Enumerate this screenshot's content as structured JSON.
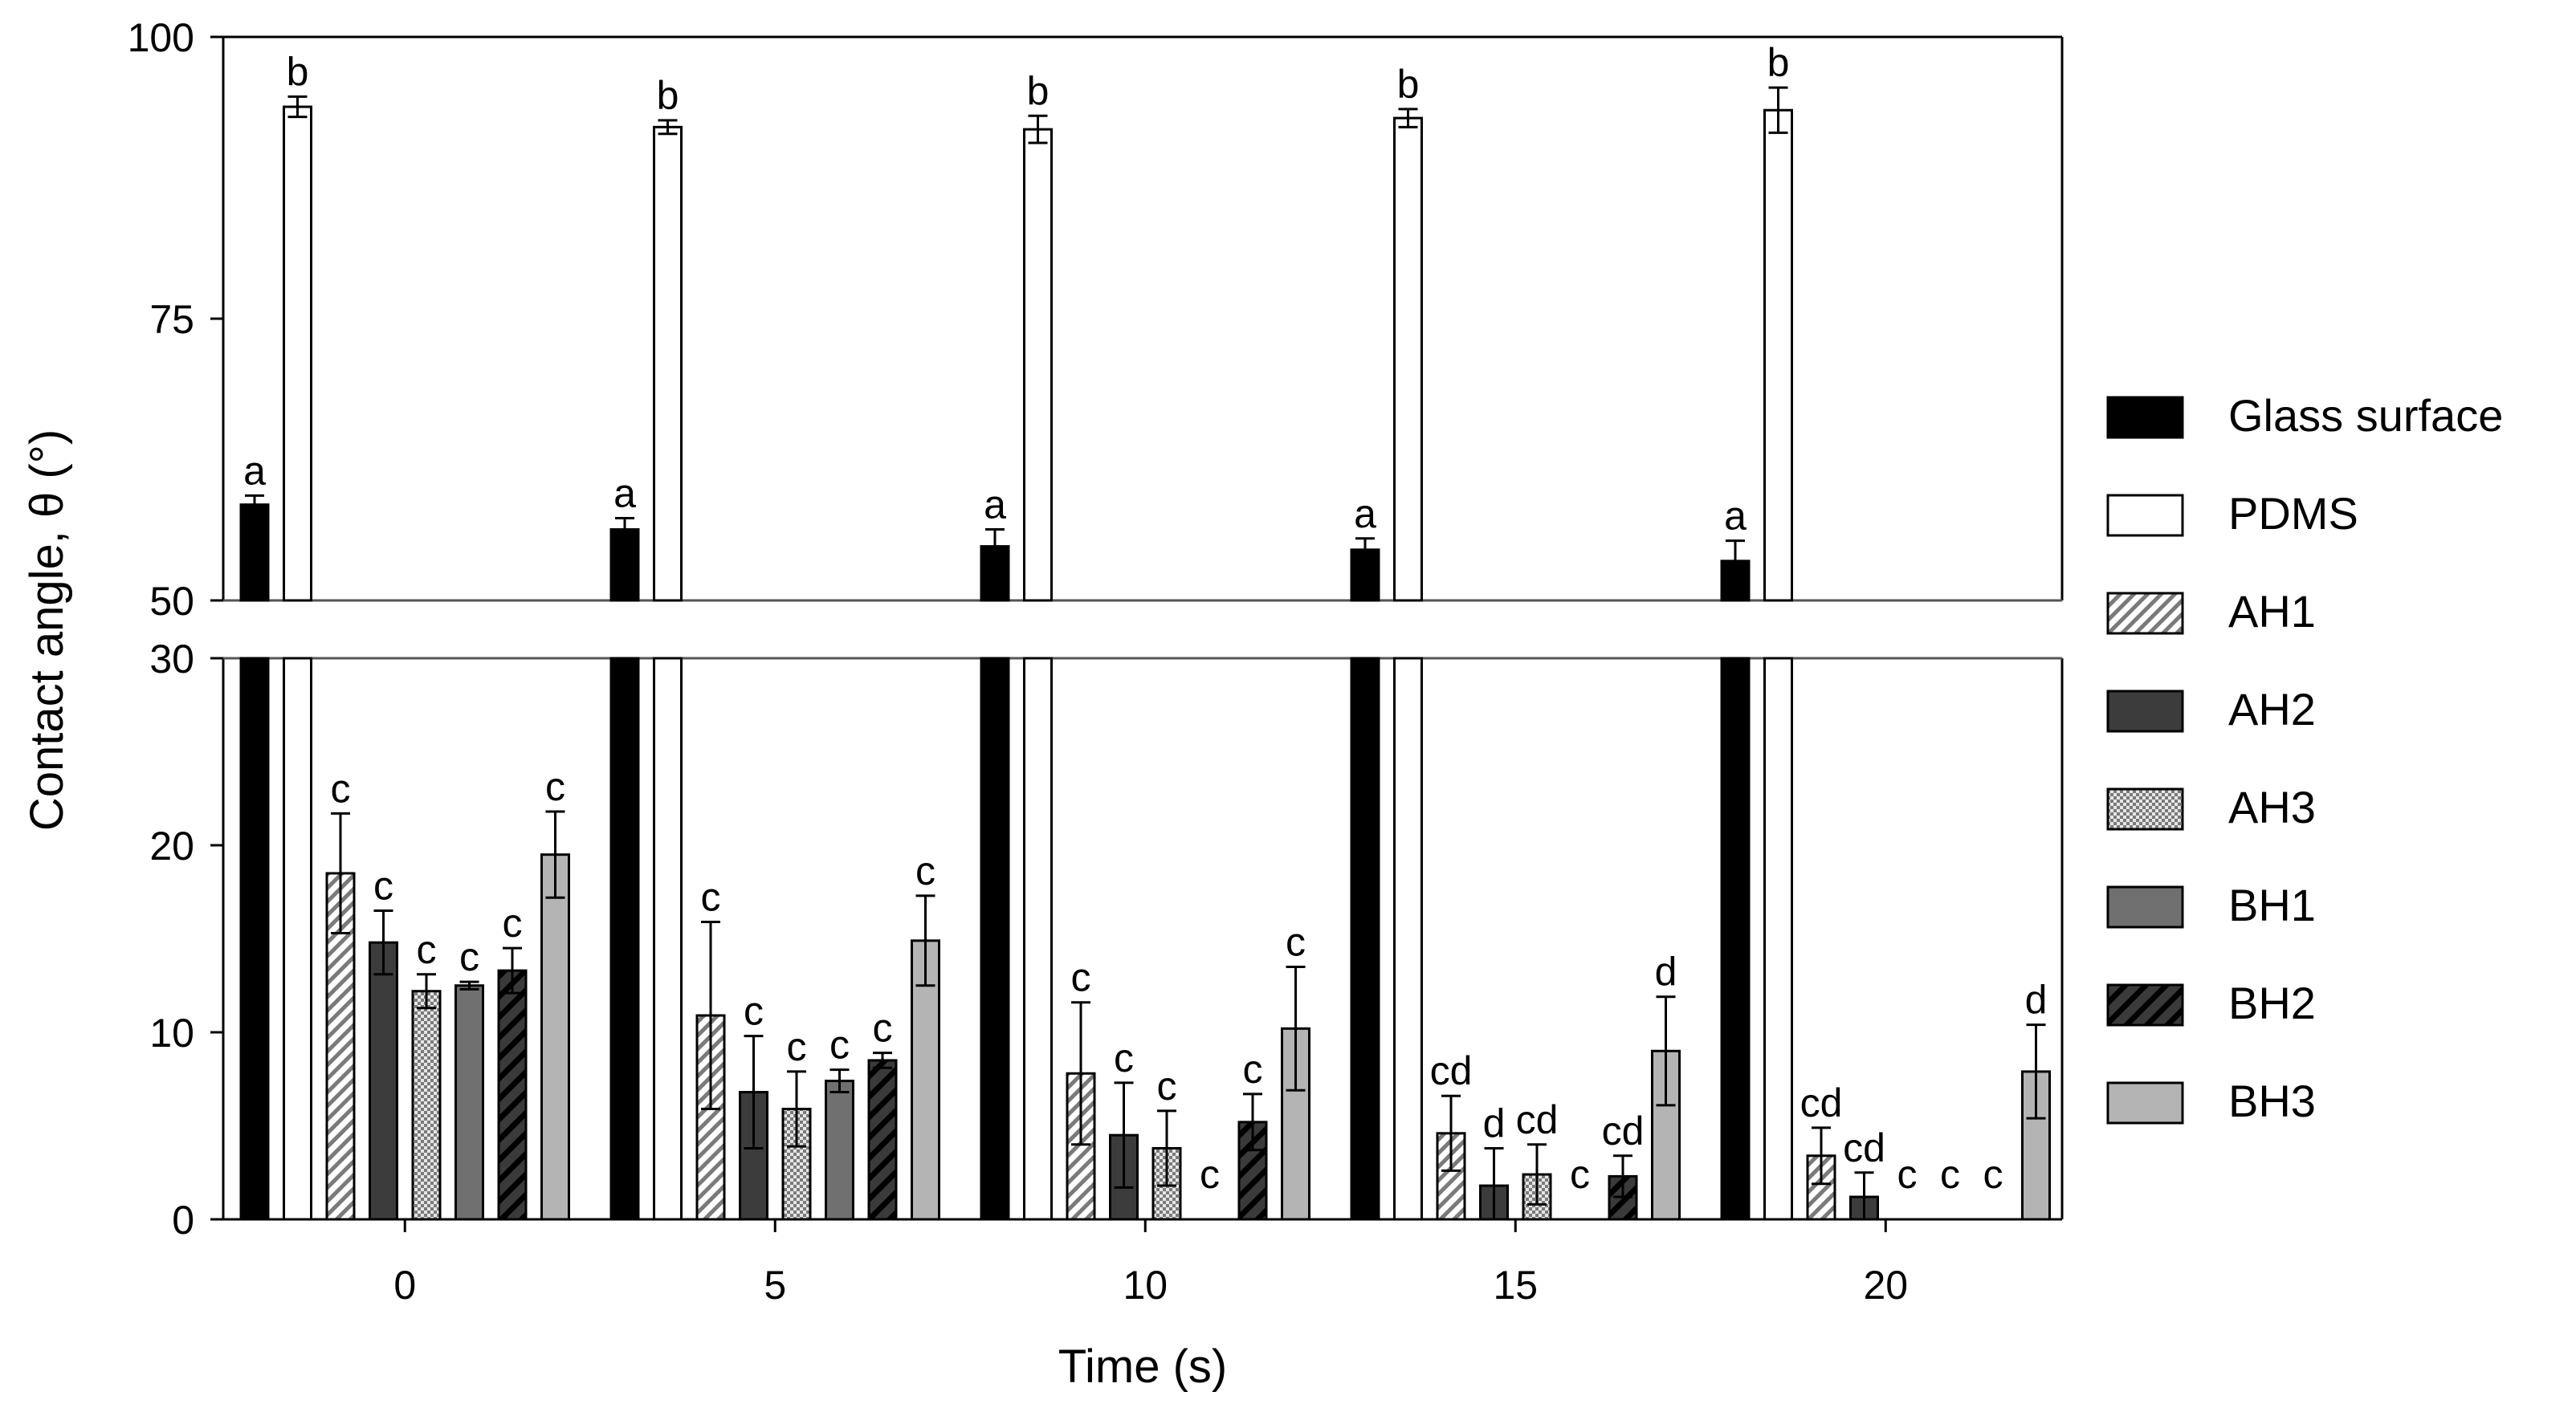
{
  "chart_data": {
    "type": "bar",
    "title": "",
    "xlabel": "Time (s)",
    "ylabel": "Contact angle, θ (°)",
    "categories": [
      "0",
      "5",
      "10",
      "15",
      "20"
    ],
    "y_axis_break": [
      30,
      50
    ],
    "ylim": [
      0,
      100
    ],
    "yticks": [
      0,
      10,
      20,
      30,
      50,
      75,
      100
    ],
    "legend_position": "right",
    "series": [
      {
        "name": "Glass surface",
        "pattern": "solid-black",
        "values": [
          58.5,
          56.3,
          54.8,
          54.5,
          53.5
        ],
        "errors": [
          0.8,
          1.0,
          1.5,
          1.0,
          1.8
        ],
        "labels": [
          "a",
          "a",
          "a",
          "a",
          "a"
        ]
      },
      {
        "name": "PDMS",
        "pattern": "white",
        "values": [
          93.8,
          92.0,
          91.8,
          92.8,
          93.5
        ],
        "errors": [
          0.9,
          0.6,
          1.2,
          0.8,
          2.0
        ],
        "labels": [
          "b",
          "b",
          "b",
          "b",
          "b"
        ]
      },
      {
        "name": "AH1",
        "pattern": "hatch-light",
        "values": [
          18.5,
          10.9,
          7.8,
          4.6,
          3.4
        ],
        "errors": [
          3.2,
          5.0,
          3.8,
          2.0,
          1.5
        ],
        "labels": [
          "c",
          "c",
          "c",
          "cd",
          "cd"
        ]
      },
      {
        "name": "AH2",
        "pattern": "solid-dark",
        "values": [
          14.8,
          6.8,
          4.5,
          1.8,
          1.2
        ],
        "errors": [
          1.7,
          3.0,
          2.8,
          2.0,
          1.3
        ],
        "labels": [
          "c",
          "c",
          "c",
          "d",
          "cd"
        ]
      },
      {
        "name": "AH3",
        "pattern": "checker",
        "values": [
          12.2,
          5.9,
          3.8,
          2.4,
          0
        ],
        "errors": [
          0.9,
          2.0,
          2.0,
          1.6,
          0
        ],
        "labels": [
          "c",
          "c",
          "c",
          "cd",
          "c"
        ]
      },
      {
        "name": "BH1",
        "pattern": "solid-mid",
        "values": [
          12.5,
          7.4,
          0,
          0,
          0
        ],
        "errors": [
          0.2,
          0.6,
          0,
          0,
          0
        ],
        "labels": [
          "c",
          "c",
          "c",
          "c",
          "c"
        ]
      },
      {
        "name": "BH2",
        "pattern": "hatch-dark",
        "values": [
          13.3,
          8.5,
          5.2,
          2.3,
          0
        ],
        "errors": [
          1.2,
          0.4,
          1.5,
          1.1,
          0
        ],
        "labels": [
          "c",
          "c",
          "c",
          "cd",
          "c"
        ]
      },
      {
        "name": "BH3",
        "pattern": "solid-light",
        "values": [
          19.5,
          14.9,
          10.2,
          9.0,
          7.9
        ],
        "errors": [
          2.3,
          2.4,
          3.3,
          2.9,
          2.5
        ],
        "labels": [
          "c",
          "c",
          "c",
          "d",
          "d"
        ]
      }
    ]
  }
}
